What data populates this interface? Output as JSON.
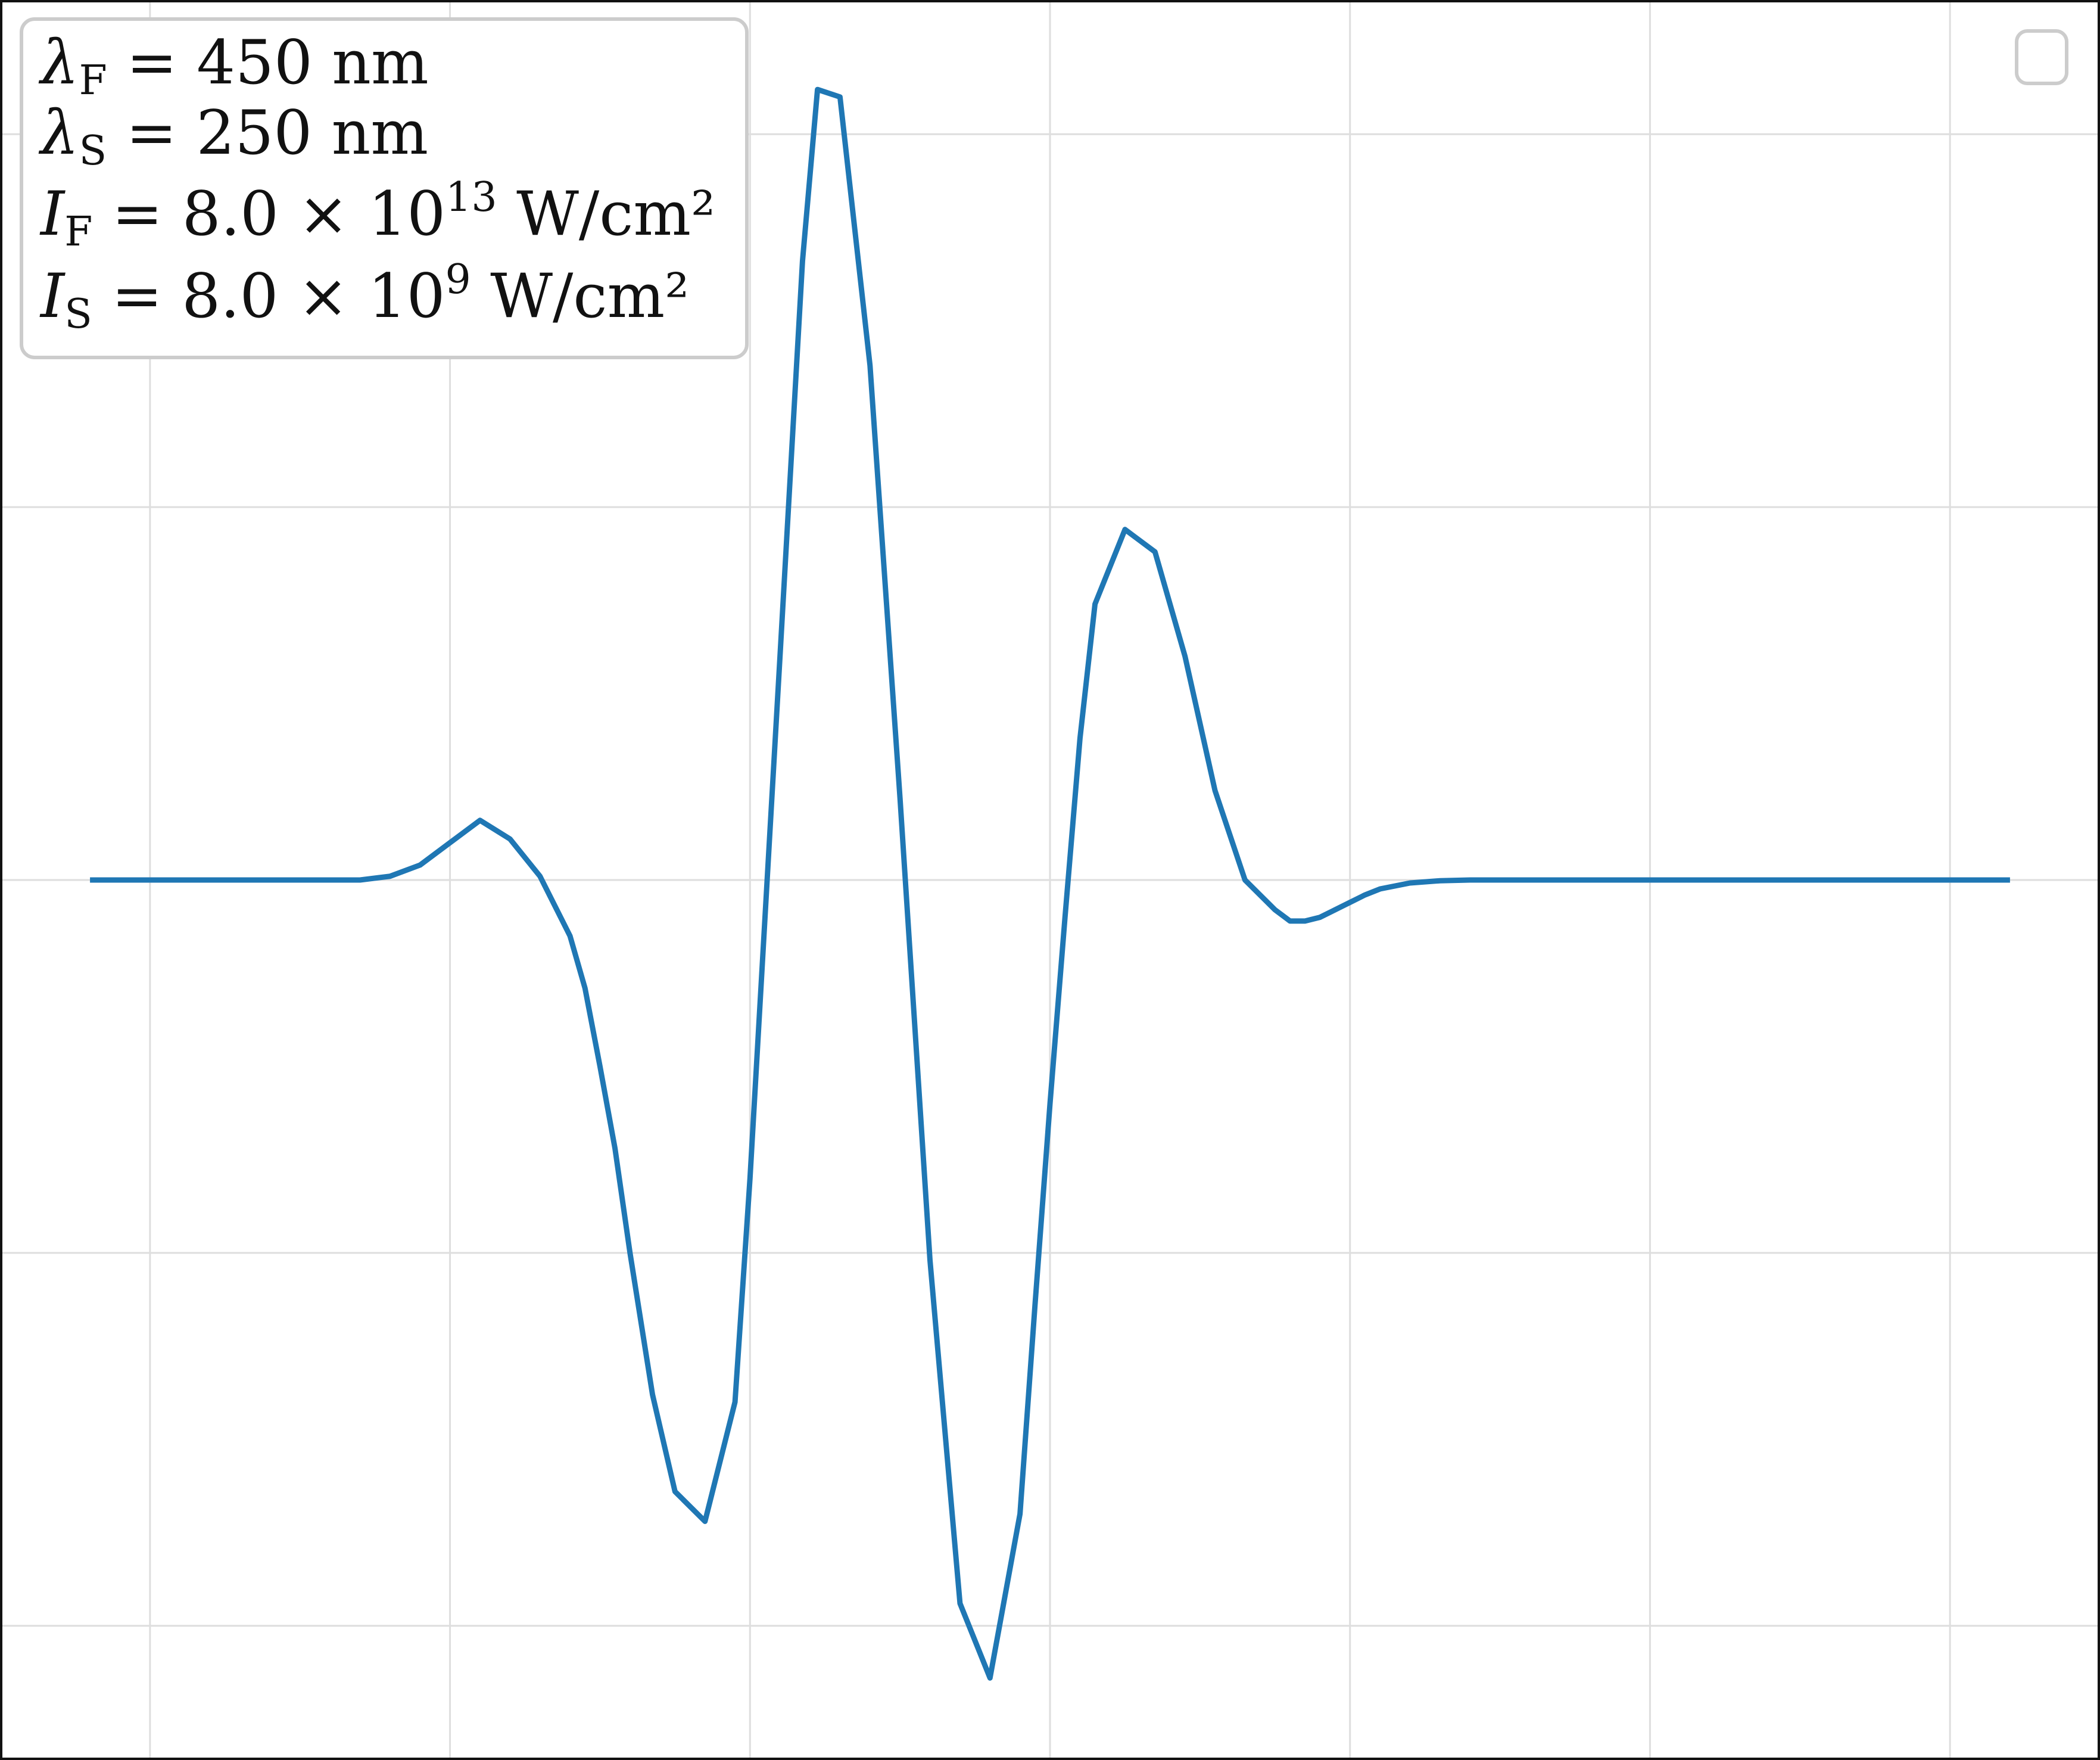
{
  "chart_data": {
    "type": "line",
    "title": "",
    "xlabel": "",
    "ylabel": "",
    "grid": true,
    "xlim": [
      0,
      14
    ],
    "ylim": [
      -1.18,
      1.18
    ],
    "x_gridlines": [
      1,
      3,
      5,
      7,
      9,
      11,
      13
    ],
    "y_gridlines": [
      -1,
      -0.5,
      0,
      0.5,
      1
    ],
    "legend_position": "top-left",
    "legend_lines": [
      {
        "symbol": "λ",
        "sub": "F",
        "rest": " = 450 nm",
        "exp": "",
        "tail": ""
      },
      {
        "symbol": "λ",
        "sub": "S",
        "rest": " = 250 nm",
        "exp": "",
        "tail": ""
      },
      {
        "symbol": "I",
        "sub": "F",
        "rest": " = 8.0 × 10",
        "exp": "13",
        "tail": " W/cm²"
      },
      {
        "symbol": "I",
        "sub": "S",
        "rest": " = 8.0 × 10",
        "exp": "9",
        "tail": " W/cm²"
      }
    ],
    "series": [
      {
        "color": "#1f77b4",
        "x": [
          0.6,
          1.0,
          1.5,
          2.0,
          2.4,
          2.6,
          2.8,
          3.0,
          3.2,
          3.4,
          3.6,
          3.8,
          3.9,
          4.0,
          4.1,
          4.2,
          4.35,
          4.5,
          4.7,
          4.9,
          5.0,
          5.1,
          5.2,
          5.35,
          5.45,
          5.6,
          5.8,
          6.0,
          6.2,
          6.4,
          6.6,
          6.8,
          6.9,
          7.0,
          7.1,
          7.2,
          7.3,
          7.5,
          7.7,
          7.9,
          8.1,
          8.3,
          8.5,
          8.6,
          8.7,
          8.8,
          8.9,
          9.0,
          9.1,
          9.2,
          9.3,
          9.4,
          9.6,
          9.8,
          10.0,
          10.2,
          10.4,
          10.6,
          10.8,
          11.0,
          11.3,
          11.6,
          12.0,
          12.5,
          13.0,
          13.4
        ],
        "y": [
          0.0,
          0.0,
          0.0,
          0.0,
          0.0,
          0.005,
          0.02,
          0.05,
          0.08,
          0.055,
          0.005,
          -0.075,
          -0.145,
          -0.25,
          -0.36,
          -0.5,
          -0.69,
          -0.82,
          -0.86,
          -0.7,
          -0.4,
          -0.05,
          0.3,
          0.83,
          1.06,
          1.05,
          0.69,
          0.11,
          -0.51,
          -0.97,
          -1.07,
          -0.85,
          -0.57,
          -0.3,
          -0.05,
          0.19,
          0.37,
          0.47,
          0.44,
          0.3,
          0.12,
          0.0,
          -0.04,
          -0.055,
          -0.055,
          -0.05,
          -0.04,
          -0.03,
          -0.02,
          -0.012,
          -0.008,
          -0.004,
          -0.001,
          0.0,
          0.0,
          0.0,
          0.0,
          0.0,
          0.0,
          0.0,
          0.0,
          0.0,
          0.0,
          0.0,
          0.0,
          0.0
        ]
      }
    ]
  }
}
